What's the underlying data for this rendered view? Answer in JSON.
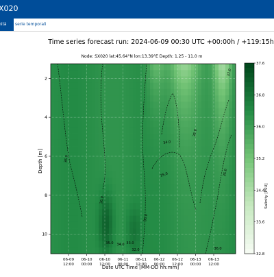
{
  "header": {
    "title": "X020"
  },
  "tabs": [
    {
      "label": "nità",
      "active": true
    },
    {
      "label": "serie temporali",
      "active": false
    }
  ],
  "colors": {
    "header_bg": "#004d99",
    "tab_text": "#004d99"
  },
  "chart_data": {
    "type": "heatmap",
    "title": "Time series forecast run: 2024-06-09  00:30 UTC   +00:00h / +119:15h",
    "subtitle": "Node: SX020      lat:45.64°N  lon:13.39°E      Depth: 1.25 - 11.0 m",
    "xlabel": "Date UTC Time [MM-DD hh:mm]",
    "ylabel": "Depth [m]",
    "colorbar_label": "Salinity [PSU]",
    "x_ticks": [
      "06-09\n12:00",
      "06-10\n00:00",
      "06-10\n12:00",
      "06-11\n00:00",
      "06-11\n12:00",
      "06-12\n00:00",
      "06-12\n12:00",
      "06-13\n00:00",
      "06-13\n12:00"
    ],
    "y_ticks": [
      2,
      4,
      6,
      8,
      10
    ],
    "ylim": [
      11.0,
      1.25
    ],
    "colorbar_ticks": [
      32.8,
      33.6,
      34.4,
      35.2,
      36.0,
      36.8,
      37.6
    ],
    "clim": [
      32.8,
      37.6
    ],
    "contour_labels": [
      "36.0",
      "35.0",
      "34.0",
      "33.0",
      "32.0",
      "36.0",
      "35.0",
      "34.0",
      "36.0",
      "35.0",
      "35.0",
      "36.0",
      "37.0"
    ]
  }
}
